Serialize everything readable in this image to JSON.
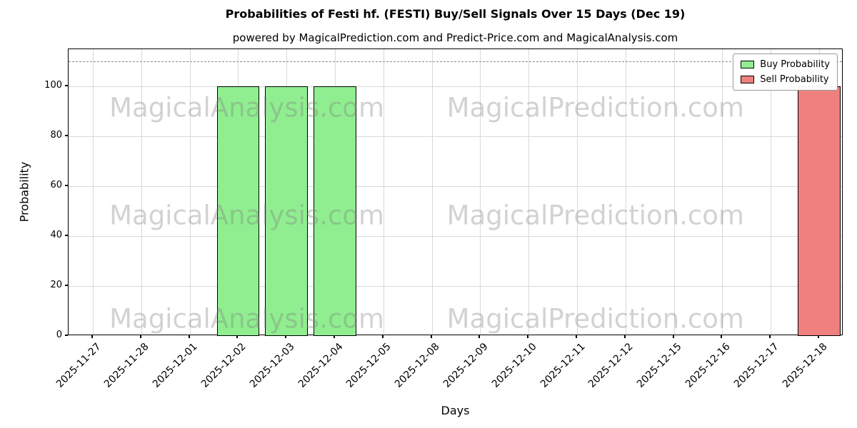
{
  "chart_data": {
    "type": "bar",
    "title": "Probabilities of Festi hf. (FESTI) Buy/Sell Signals Over 15 Days (Dec 19)",
    "subtitle": "powered by MagicalPrediction.com and Predict-Price.com and MagicalAnalysis.com",
    "xlabel": "Days",
    "ylabel": "Probability",
    "categories": [
      "2025-11-27",
      "2025-11-28",
      "2025-12-01",
      "2025-12-02",
      "2025-12-03",
      "2025-12-04",
      "2025-12-05",
      "2025-12-08",
      "2025-12-09",
      "2025-12-10",
      "2025-12-11",
      "2025-12-12",
      "2025-12-15",
      "2025-12-16",
      "2025-12-17",
      "2025-12-18"
    ],
    "series": [
      {
        "name": "Buy Probability",
        "color": "#90ee90",
        "values": [
          0,
          0,
          0,
          100,
          100,
          100,
          0,
          0,
          0,
          0,
          0,
          0,
          0,
          0,
          0,
          0
        ]
      },
      {
        "name": "Sell Probability",
        "color": "#f08080",
        "values": [
          0,
          0,
          0,
          0,
          0,
          0,
          0,
          0,
          0,
          0,
          0,
          0,
          0,
          0,
          0,
          100
        ]
      }
    ],
    "ylim": [
      0,
      115
    ],
    "yticks": [
      0,
      20,
      40,
      60,
      80,
      100
    ],
    "threshold_line": {
      "y": 110,
      "style": "dashed",
      "color": "#8a8a8a"
    },
    "grid": true,
    "legend_position": "top-right",
    "bar_edge_color": "#000000"
  },
  "watermarks": {
    "left": "MagicalAnalysis.com",
    "right": "MagicalPrediction.com"
  }
}
